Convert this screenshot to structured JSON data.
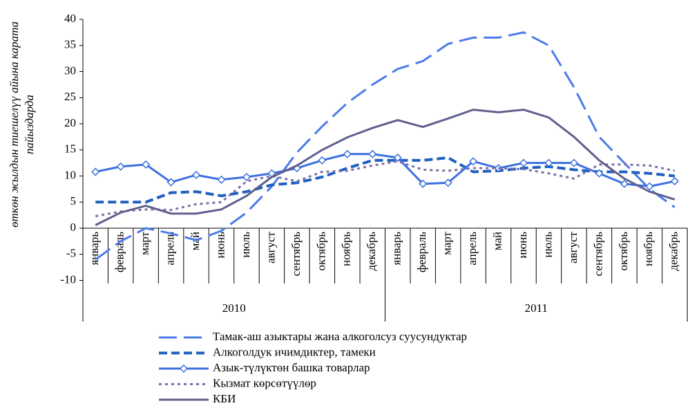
{
  "chart_data": {
    "type": "line",
    "ylabel": [
      "өткөн жылдын тиешелүү айына карата",
      "пайыздарда"
    ],
    "categories": [
      "январь",
      "февраль",
      "март",
      "апрель",
      "май",
      "июнь",
      "июль",
      "август",
      "сентябрь",
      "октябрь",
      "ноябрь",
      "декабрь",
      "январь",
      "февраль",
      "март",
      "апрель",
      "май",
      "июнь",
      "июль",
      "август",
      "сентябрь",
      "октябрь",
      "ноябрь",
      "декабрь"
    ],
    "groups": [
      "2010",
      "2011"
    ],
    "ylim": [
      -10,
      40
    ],
    "yticks": [
      -10,
      -5,
      0,
      5,
      10,
      15,
      20,
      25,
      30,
      35,
      40
    ],
    "series": [
      {
        "name": "Тамак-аш азыктары жана алкоголсуз суусундуктар",
        "color": "#4a7be8",
        "linestyle": "long-dash",
        "values": [
          -6,
          -2.5,
          0,
          -1,
          -2.3,
          -0.5,
          3,
          8,
          14.5,
          19.5,
          24,
          27.5,
          30.5,
          32,
          35.3,
          36.5,
          36.5,
          37.5,
          35,
          27,
          17.5,
          12.5,
          7.5,
          4
        ]
      },
      {
        "name": "Алкоголдук ичимдиктер, тамеки",
        "color": "#1f5fbf",
        "linestyle": "short-dash",
        "values": [
          5,
          5,
          5,
          6.8,
          7,
          6.2,
          7,
          8.3,
          8.7,
          9.8,
          11.5,
          13,
          13,
          13,
          13.5,
          10.8,
          11,
          11.5,
          11.8,
          11.2,
          10.8,
          10.8,
          10.5,
          10
        ]
      },
      {
        "name": "Азык-түлүктөн башка товарлар",
        "color": "#3b6fe0",
        "linestyle": "solid",
        "marker": "diamond",
        "values": [
          10.8,
          11.8,
          12.2,
          8.8,
          10.2,
          9.3,
          9.8,
          10.5,
          11.5,
          13,
          14.2,
          14.2,
          13.5,
          8.5,
          8.7,
          12.8,
          11.5,
          12.5,
          12.5,
          12.5,
          10.5,
          8.5,
          8,
          9
        ]
      },
      {
        "name": "Кызмат көрсөтүүлөр",
        "color": "#7b70a8",
        "linestyle": "dot",
        "values": [
          2.3,
          3.2,
          3.6,
          3.5,
          4.6,
          5,
          9,
          10,
          9,
          10.8,
          11,
          12,
          12.8,
          11.2,
          11,
          11.5,
          11.5,
          11.3,
          10.5,
          9.5,
          12.2,
          12.2,
          12,
          11
        ]
      },
      {
        "name": "КБИ",
        "color": "#5f5f8f",
        "linestyle": "solid",
        "values": [
          0.6,
          3,
          4.3,
          2.8,
          2.8,
          3.6,
          6.2,
          9.8,
          12,
          15,
          17.4,
          19.2,
          20.7,
          19.4,
          21,
          22.7,
          22.2,
          22.7,
          21.2,
          17.5,
          13,
          9.5,
          7,
          5.5
        ]
      }
    ]
  }
}
